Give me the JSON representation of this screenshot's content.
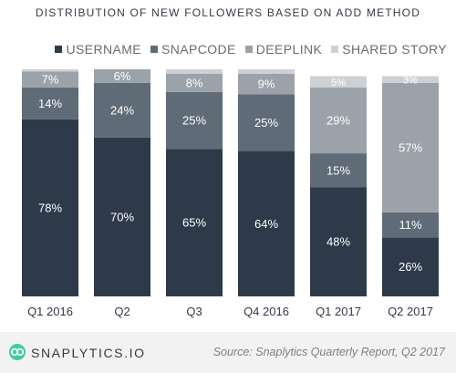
{
  "title": "DISTRIBUTION OF NEW FOLLOWERS BASED ON ADD METHOD",
  "footer": {
    "brand": "SNAPLYTICS.IO",
    "source": "Source: Snaplytics Quarterly Report, Q2 2017"
  },
  "chart_data": {
    "type": "bar",
    "stacked": true,
    "title": "DISTRIBUTION OF NEW FOLLOWERS BASED ON ADD METHOD",
    "categories": [
      "Q1 2016",
      "Q2",
      "Q3",
      "Q4 2016",
      "Q1 2017",
      "Q2 2017"
    ],
    "ylim": [
      0,
      100
    ],
    "grid": false,
    "legend_position": "top-right",
    "series": [
      {
        "name": "USERNAME",
        "color": "#2e3a4a",
        "values": [
          78,
          70,
          65,
          64,
          48,
          26
        ]
      },
      {
        "name": "SNAPCODE",
        "color": "#5f6b77",
        "values": [
          14,
          24,
          25,
          25,
          15,
          11
        ]
      },
      {
        "name": "DEEPLINK",
        "color": "#9ba2a9",
        "values": [
          7,
          6,
          8,
          9,
          29,
          57
        ]
      },
      {
        "name": "SHARED STORY",
        "color": "#cdd1d5",
        "values": [
          1,
          0,
          2,
          2,
          5,
          3
        ]
      }
    ],
    "data_labels": [
      [
        "78%",
        "14%",
        "7%",
        ""
      ],
      [
        "70%",
        "24%",
        "6%",
        ""
      ],
      [
        "65%",
        "25%",
        "8%",
        ""
      ],
      [
        "64%",
        "25%",
        "9%",
        ""
      ],
      [
        "48%",
        "15%",
        "29%",
        "5%"
      ],
      [
        "26%",
        "11%",
        "57%",
        "3%"
      ]
    ]
  }
}
